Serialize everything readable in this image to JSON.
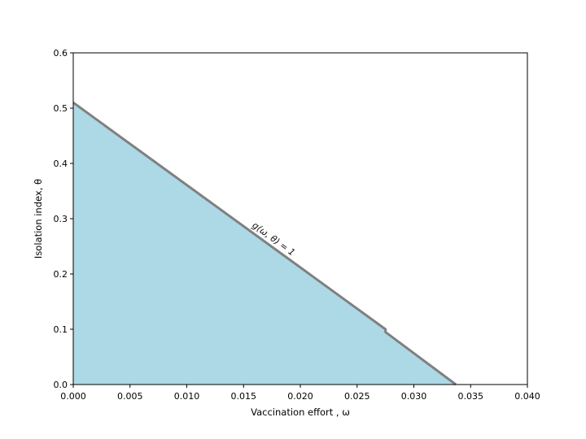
{
  "chart_data": {
    "type": "area",
    "title": "",
    "xlabel": "Vaccination effort , ω",
    "ylabel": "Isolation index, θ",
    "xlim": [
      0.0,
      0.04
    ],
    "ylim": [
      0.0,
      0.6
    ],
    "xticks": [
      "0.000",
      "0.005",
      "0.010",
      "0.015",
      "0.020",
      "0.025",
      "0.030",
      "0.035",
      "0.040"
    ],
    "yticks": [
      "0.0",
      "0.1",
      "0.2",
      "0.3",
      "0.4",
      "0.5",
      "0.6"
    ],
    "grid": false,
    "series": [
      {
        "x": [
          0.0,
          0.0275,
          0.0275,
          0.0337
        ],
        "y": [
          0.51,
          0.1,
          0.095,
          0.0
        ]
      }
    ],
    "annotations": [
      {
        "text": "g(ω, θ) = 1",
        "x": 0.0175,
        "y": 0.265
      }
    ],
    "colors": {
      "fill": "#add8e6",
      "line": "#808080"
    }
  }
}
